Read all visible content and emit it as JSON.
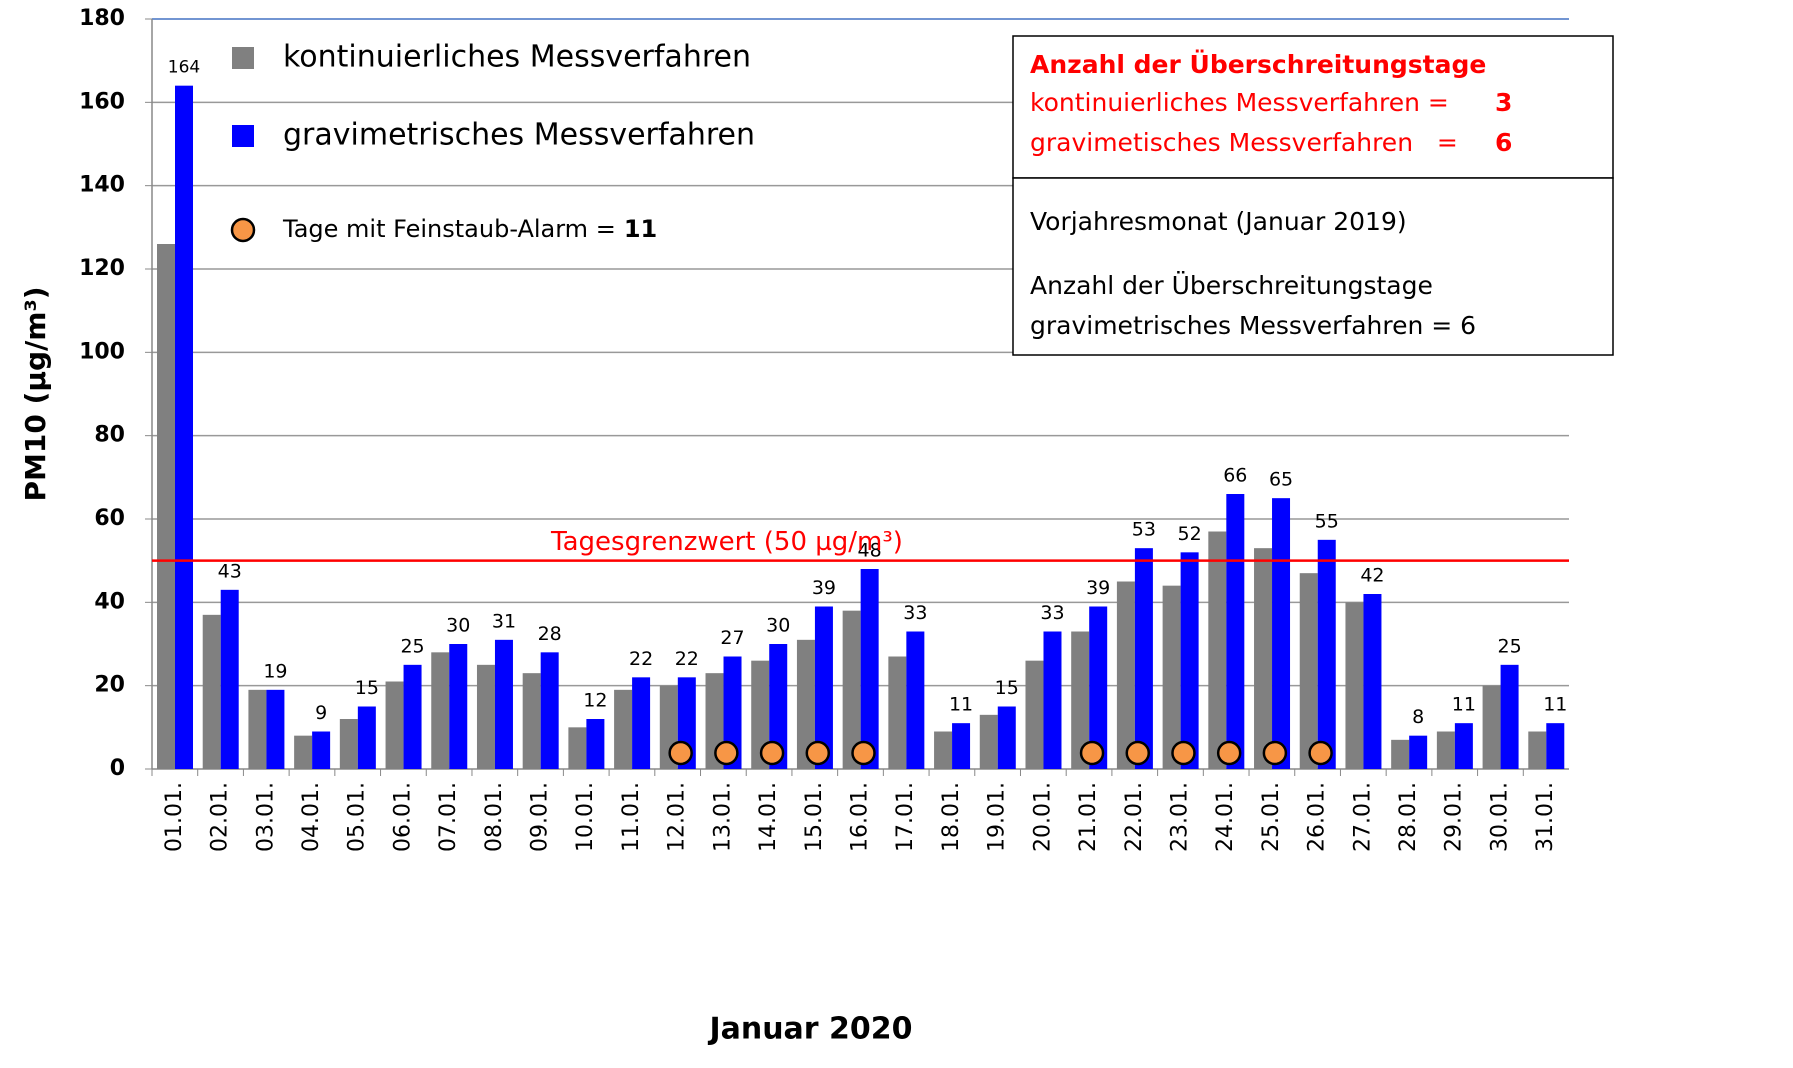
{
  "chart_data": {
    "type": "bar",
    "y_label": "PM10 (µg/m³)",
    "x_label": "Januar 2020",
    "categories": [
      "01.01.",
      "02.01.",
      "03.01.",
      "04.01.",
      "05.01.",
      "06.01.",
      "07.01.",
      "08.01.",
      "09.01.",
      "10.01.",
      "11.01.",
      "12.01.",
      "13.01.",
      "14.01.",
      "15.01.",
      "16.01.",
      "17.01.",
      "18.01.",
      "19.01.",
      "20.01.",
      "21.01.",
      "22.01.",
      "23.01.",
      "24.01.",
      "25.01.",
      "26.01.",
      "27.01.",
      "28.01.",
      "29.01.",
      "30.01.",
      "31.01."
    ],
    "series": [
      {
        "name": "kontinuierliches Messverfahren",
        "color": "#808080",
        "values": [
          126,
          37,
          19,
          8,
          12,
          21,
          28,
          25,
          23,
          10,
          19,
          20,
          23,
          26,
          31,
          38,
          27,
          9,
          13,
          26,
          33,
          45,
          44,
          57,
          53,
          47,
          40,
          7,
          9,
          20,
          9
        ]
      },
      {
        "name": "gravimetrisches Messverfahren",
        "color": "#0000ff",
        "show_labels": true,
        "values": [
          164,
          43,
          19,
          9,
          15,
          25,
          30,
          31,
          28,
          12,
          22,
          22,
          27,
          30,
          39,
          48,
          33,
          11,
          15,
          33,
          39,
          53,
          52,
          66,
          65,
          55,
          42,
          8,
          11,
          25,
          11
        ]
      }
    ],
    "alarm": {
      "label": "Tage mit Feinstaub-Alarm =",
      "count": 11,
      "color": "#f79646",
      "days": [
        false,
        false,
        false,
        false,
        false,
        false,
        false,
        false,
        false,
        false,
        false,
        true,
        true,
        true,
        true,
        true,
        false,
        false,
        false,
        false,
        true,
        true,
        true,
        true,
        true,
        true,
        false,
        false,
        false,
        false,
        false
      ]
    },
    "reference_line": {
      "value": 50,
      "label": "Tagesgrenzwert (50 µg/m³)",
      "color": "#ff0000"
    },
    "box1": {
      "title": "Anzahl der Überschreitungstage",
      "rows": [
        {
          "label": "kontinuierliches Messverfahren =",
          "value": 3
        },
        {
          "label": "gravimetisches Messverfahren   =",
          "value": 6
        }
      ]
    },
    "box2": {
      "lines": [
        "Vorjahresmonat (Januar 2019)",
        "Anzahl der Überschreitungstage",
        "gravimetrisches Messverfahren = 6"
      ]
    },
    "ylim": [
      0,
      180
    ],
    "yticks": [
      0,
      20,
      40,
      60,
      80,
      100,
      120,
      140,
      160,
      180
    ],
    "grid": true
  }
}
